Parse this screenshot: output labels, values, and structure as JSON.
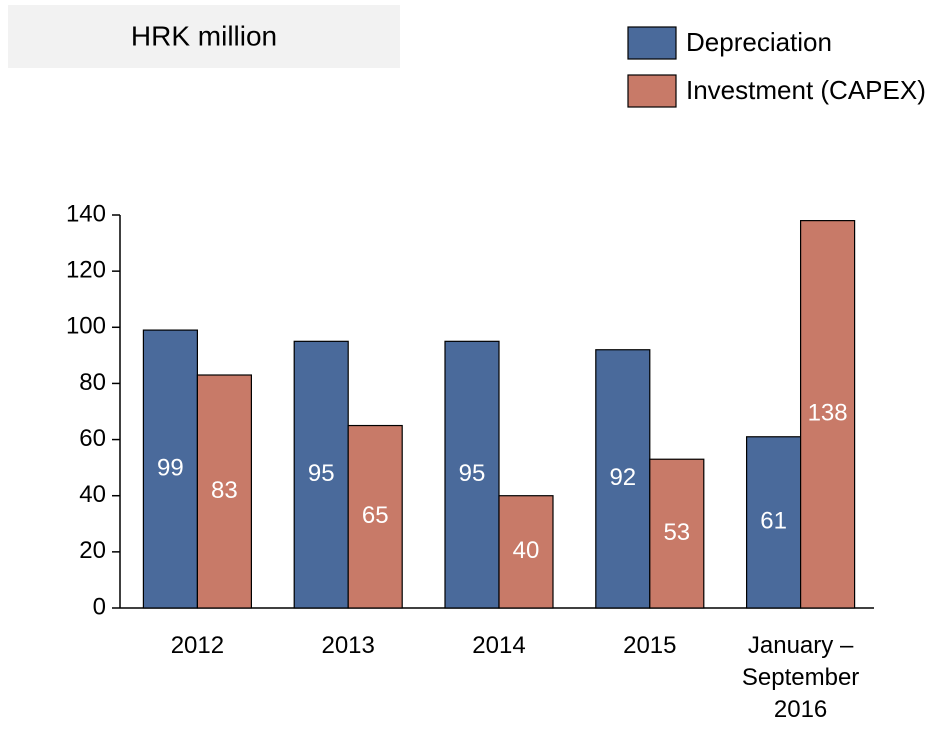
{
  "chart_data": {
    "type": "bar",
    "title": "HRK million",
    "categories": [
      "2012",
      "2013",
      "2014",
      "2015",
      "January – September 2016"
    ],
    "series": [
      {
        "name": "Depreciation",
        "color": "#4a6a9b",
        "values": [
          99,
          95,
          95,
          92,
          61
        ]
      },
      {
        "name": "Investment (CAPEX)",
        "color": "#c87a68",
        "values": [
          83,
          65,
          40,
          53,
          138
        ]
      }
    ],
    "ylim": [
      0,
      140
    ],
    "yticks": [
      0,
      20,
      40,
      60,
      80,
      100,
      120,
      140
    ],
    "legend": "top-right"
  }
}
